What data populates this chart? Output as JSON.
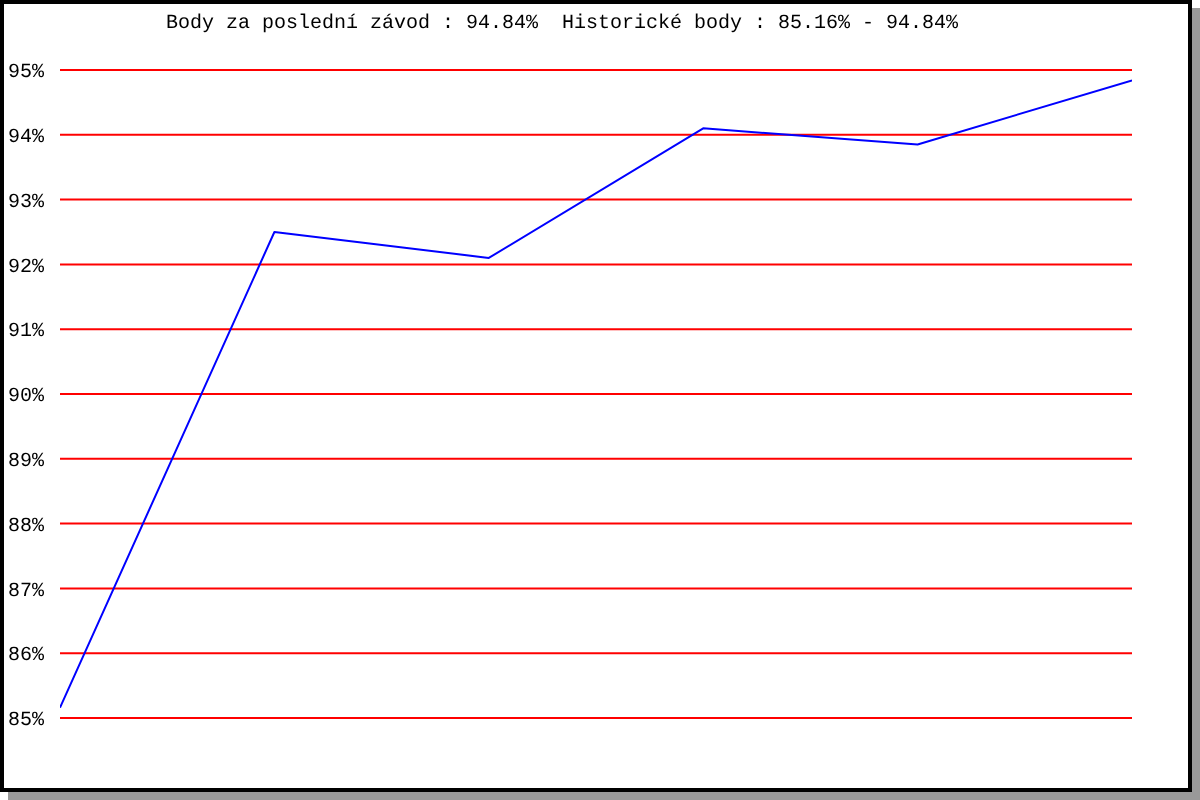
{
  "chart_data": {
    "type": "line",
    "title": "Body za poslední závod : 94.84%  Historické body : 85.16% - 94.84%",
    "categories": [
      null,
      null,
      null,
      null,
      null,
      null
    ],
    "series": [
      {
        "color": "#0000ff",
        "values": [
          85.16,
          92.5,
          92.1,
          94.1,
          93.85,
          94.84
        ]
      }
    ],
    "ylim": [
      85,
      95
    ],
    "yticks": [
      {
        "value": 85,
        "label": "85%"
      },
      {
        "value": 86,
        "label": "86%"
      },
      {
        "value": 87,
        "label": "87%"
      },
      {
        "value": 88,
        "label": "88%"
      },
      {
        "value": 89,
        "label": "89%"
      },
      {
        "value": 90,
        "label": "90%"
      },
      {
        "value": 91,
        "label": "91%"
      },
      {
        "value": 92,
        "label": "92%"
      },
      {
        "value": 93,
        "label": "93%"
      },
      {
        "value": 94,
        "label": "94%"
      },
      {
        "value": 95,
        "label": "95%"
      }
    ],
    "grid": "y",
    "tick_labels": "y",
    "marker": "none",
    "line_style": "solid"
  }
}
